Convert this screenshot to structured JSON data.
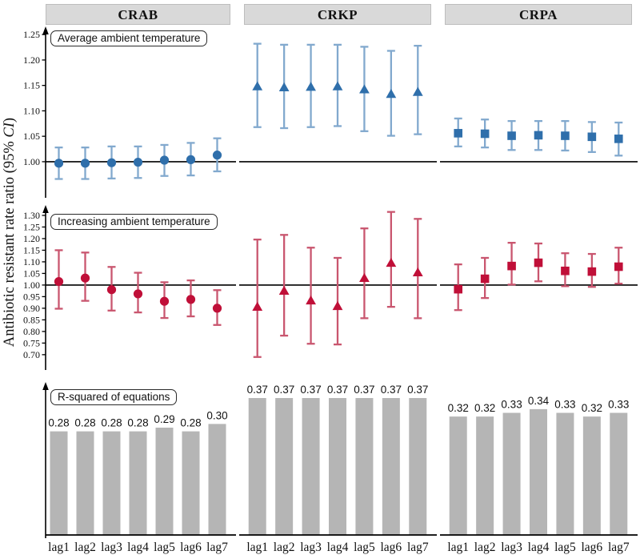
{
  "figure": {
    "ylabel": {
      "prefix": "Antibiotic resistant rate ratio (95% ",
      "italic": "CI",
      "suffix": ")"
    }
  },
  "chart_data": {
    "type": "errorbar-and-bar-facet-grid",
    "columns": [
      "CRAB",
      "CRKP",
      "CRPA"
    ],
    "lags": [
      "lag1",
      "lag2",
      "lag3",
      "lag4",
      "lag5",
      "lag6",
      "lag7"
    ],
    "colors": {
      "blue_marker": "#2f6fab",
      "blue_errorbar": "#82a9ce",
      "red_marker": "#c00f38",
      "red_errorbar": "#c9566f",
      "bar_fill": "#b5b5b5",
      "header_bg": "#d9d9d9",
      "axis": "#000000"
    },
    "rows": [
      {
        "id": "average-ambient-temperature",
        "label": "Average ambient temperature",
        "type": "errorbar",
        "ref_line": 1.0,
        "ylim": [
          0.929,
          1.266
        ],
        "yticks": [
          1.0,
          1.05,
          1.1,
          1.15,
          1.2,
          1.25
        ],
        "marker_color": "#2f6fab",
        "errorbar_color": "#82a9ce",
        "series": [
          {
            "name": "CRAB",
            "marker": "circle",
            "est": [
              0.997,
              0.997,
              0.998,
              0.999,
              1.003,
              1.004,
              1.013
            ],
            "lo": [
              0.966,
              0.966,
              0.967,
              0.968,
              0.972,
              0.973,
              0.981
            ],
            "hi": [
              1.028,
              1.028,
              1.03,
              1.03,
              1.033,
              1.037,
              1.046
            ]
          },
          {
            "name": "CRKP",
            "marker": "triangle",
            "est": [
              1.148,
              1.146,
              1.147,
              1.148,
              1.142,
              1.133,
              1.137
            ],
            "lo": [
              1.068,
              1.066,
              1.068,
              1.07,
              1.06,
              1.051,
              1.054
            ],
            "hi": [
              1.232,
              1.23,
              1.23,
              1.23,
              1.226,
              1.218,
              1.228
            ]
          },
          {
            "name": "CRPA",
            "marker": "square",
            "est": [
              1.056,
              1.055,
              1.051,
              1.052,
              1.051,
              1.049,
              1.045
            ],
            "lo": [
              1.03,
              1.028,
              1.023,
              1.023,
              1.022,
              1.019,
              1.012
            ],
            "hi": [
              1.085,
              1.083,
              1.08,
              1.08,
              1.08,
              1.078,
              1.077
            ]
          }
        ]
      },
      {
        "id": "increasing-ambient-temperature",
        "label": "Increasing ambient temperature",
        "type": "errorbar",
        "ref_line": 1.0,
        "ylim": [
          0.634,
          1.324
        ],
        "yticks": [
          0.7,
          0.75,
          0.8,
          0.85,
          0.9,
          0.95,
          1.0,
          1.05,
          1.1,
          1.15,
          1.2,
          1.25,
          1.3
        ],
        "marker_color": "#c00f38",
        "errorbar_color": "#c9566f",
        "series": [
          {
            "name": "CRAB",
            "marker": "circle",
            "est": [
              1.015,
              1.03,
              0.98,
              0.962,
              0.93,
              0.938,
              0.9
            ],
            "lo": [
              0.898,
              0.932,
              0.89,
              0.882,
              0.858,
              0.865,
              0.828
            ],
            "hi": [
              1.15,
              1.14,
              1.078,
              1.053,
              1.012,
              1.02,
              0.978
            ]
          },
          {
            "name": "CRKP",
            "marker": "triangle",
            "est": [
              0.906,
              0.975,
              0.933,
              0.909,
              1.03,
              1.095,
              1.054
            ],
            "lo": [
              0.69,
              0.782,
              0.747,
              0.744,
              0.857,
              0.906,
              0.857
            ],
            "hi": [
              1.196,
              1.216,
              1.161,
              1.117,
              1.244,
              1.315,
              1.285
            ]
          },
          {
            "name": "CRPA",
            "marker": "square",
            "est": [
              0.982,
              1.027,
              1.082,
              1.096,
              1.061,
              1.058,
              1.079
            ],
            "lo": [
              0.892,
              0.944,
              1.002,
              1.016,
              0.995,
              0.992,
              1.006
            ],
            "hi": [
              1.089,
              1.117,
              1.182,
              1.179,
              1.137,
              1.134,
              1.161
            ]
          }
        ]
      },
      {
        "id": "r-squared",
        "label": "R-squared of equations",
        "type": "bar",
        "ylim": [
          0,
          0.4155
        ],
        "series": [
          {
            "name": "CRAB",
            "values": [
              0.28,
              0.28,
              0.28,
              0.28,
              0.29,
              0.28,
              0.3
            ]
          },
          {
            "name": "CRKP",
            "values": [
              0.37,
              0.37,
              0.37,
              0.37,
              0.37,
              0.37,
              0.37
            ]
          },
          {
            "name": "CRPA",
            "values": [
              0.32,
              0.32,
              0.33,
              0.34,
              0.33,
              0.32,
              0.33
            ]
          }
        ]
      }
    ]
  }
}
